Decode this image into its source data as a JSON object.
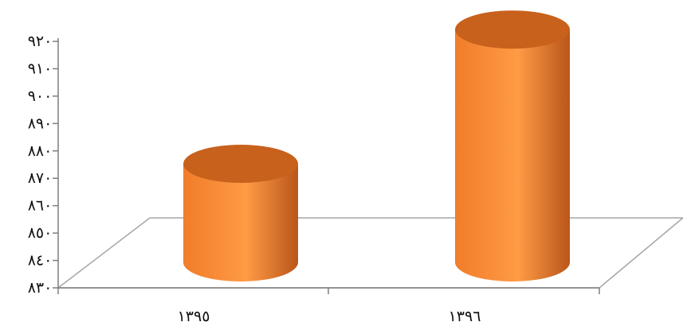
{
  "chart_data": {
    "type": "bar",
    "style": "3d-cylinder",
    "categories": [
      "١٣٩٥",
      "١٣٩٦"
    ],
    "values": [
      866,
      915
    ],
    "ylim": [
      830,
      920
    ],
    "y_ticks": [
      830,
      840,
      850,
      860,
      870,
      880,
      890,
      900,
      910,
      920
    ],
    "y_tick_labels": [
      "٨٣٠",
      "٨٤٠",
      "٨٥٠",
      "٨٦٠",
      "٨٧٠",
      "٨٨٠",
      "٨٩٠",
      "٩٠٠",
      "٩١٠",
      "٩٢٠"
    ],
    "grid": false,
    "legend": "none",
    "colors": {
      "bar_light": "#ff9a45",
      "bar_mid": "#f07d2a",
      "bar_dark": "#b9561a",
      "bar_top": "#c8611c",
      "floor_line": "#a6a6a6",
      "axis_line": "#7f7f7f"
    }
  }
}
